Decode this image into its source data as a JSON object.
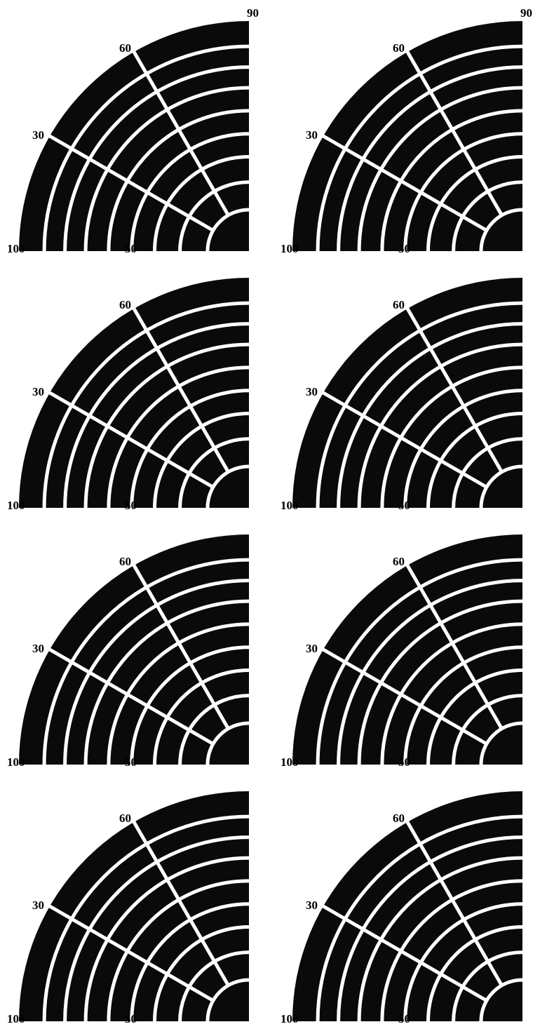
{
  "figure": {
    "panels": [
      {
        "row": 0,
        "col": 0,
        "labels": {
          "a90": "90",
          "a60": "60",
          "a30": "30",
          "r100": "100",
          "r50": "50"
        }
      },
      {
        "row": 0,
        "col": 1,
        "labels": {
          "a90": "90",
          "a60": "60",
          "a30": "30",
          "r100": "100",
          "r50": "50"
        }
      },
      {
        "row": 1,
        "col": 0,
        "labels": {
          "a90": "",
          "a60": "60",
          "a30": "30",
          "r100": "100",
          "r50": "50"
        }
      },
      {
        "row": 1,
        "col": 1,
        "labels": {
          "a90": "",
          "a60": "60",
          "a30": "30",
          "r100": "100",
          "r50": "50"
        }
      },
      {
        "row": 2,
        "col": 0,
        "labels": {
          "a90": "",
          "a60": "60",
          "a30": "30",
          "r100": "100",
          "r50": "50"
        }
      },
      {
        "row": 2,
        "col": 1,
        "labels": {
          "a90": "",
          "a60": "60",
          "a30": "30",
          "r100": "100",
          "r50": "50"
        }
      },
      {
        "row": 3,
        "col": 0,
        "labels": {
          "a90": "",
          "a60": "60",
          "a30": "30",
          "r100": "100",
          "r50": "50"
        }
      },
      {
        "row": 3,
        "col": 1,
        "labels": {
          "a90": "",
          "a60": "60",
          "a30": "30",
          "r100": "100",
          "r50": "50"
        }
      }
    ],
    "colors": {
      "disc": "#0a0a0a",
      "grid": "#ffffff",
      "paper": "#ffffff",
      "text": "#000000"
    }
  }
}
